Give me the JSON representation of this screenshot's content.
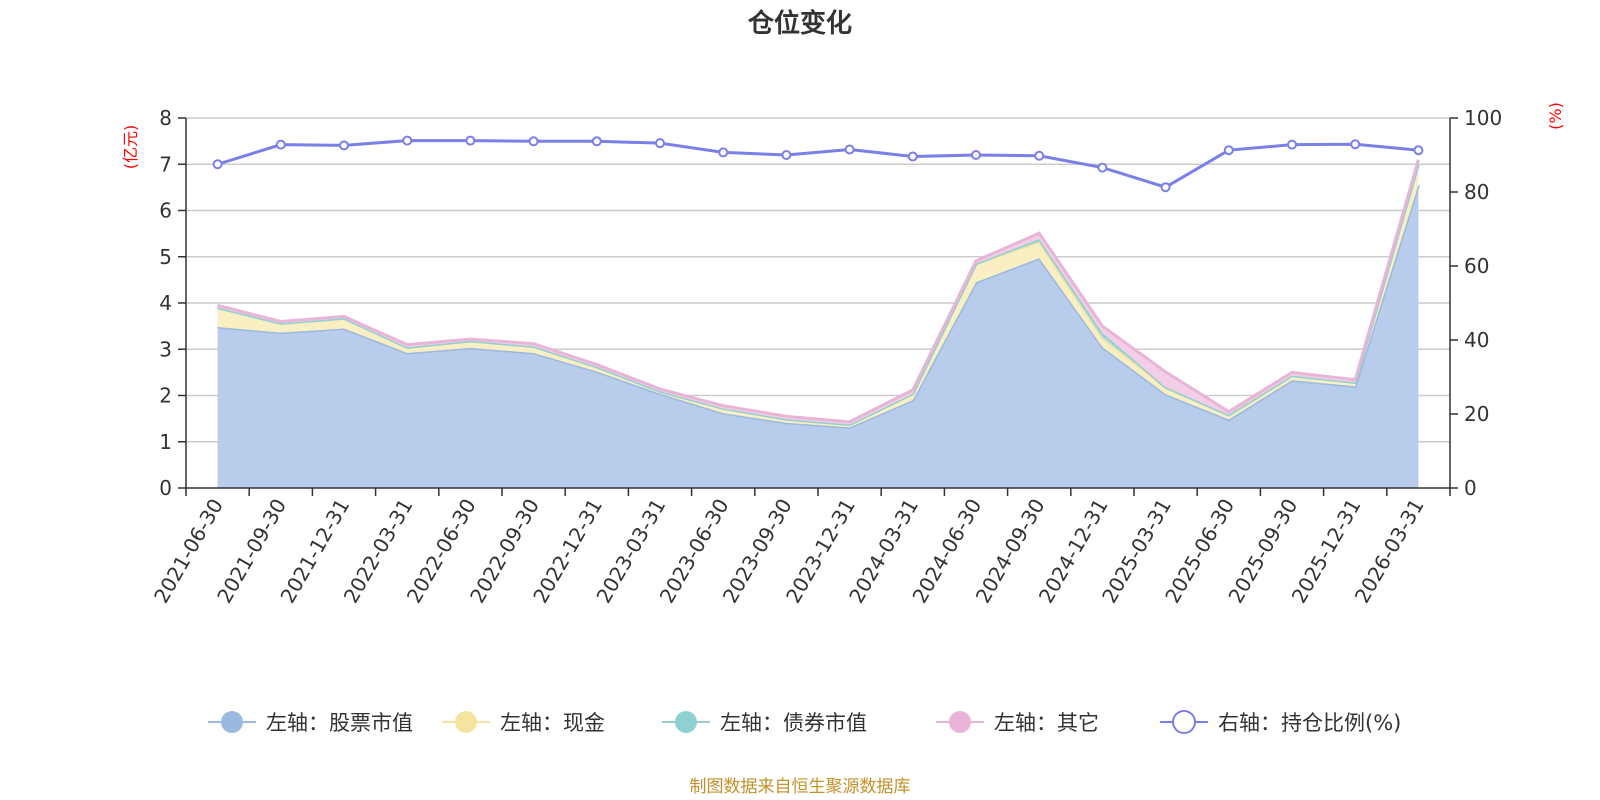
{
  "chart_data": {
    "type": "area",
    "title": "仓位变化",
    "source": "制图数据来自恒生聚源数据库",
    "left_axis": {
      "unit": "(亿元)",
      "min": 0,
      "max": 8,
      "ticks": [
        0,
        1,
        2,
        3,
        4,
        5,
        6,
        7,
        8
      ]
    },
    "right_axis": {
      "unit": "(%)",
      "min": 0,
      "max": 100,
      "ticks": [
        0,
        20,
        40,
        60,
        80,
        100
      ]
    },
    "grid": true,
    "legend_position": "bottom",
    "categories": [
      "2021-06-30",
      "2021-09-30",
      "2021-12-31",
      "2022-03-31",
      "2022-06-30",
      "2022-09-30",
      "2022-12-31",
      "2023-03-31",
      "2023-06-30",
      "2023-09-30",
      "2023-12-31",
      "2024-03-31",
      "2024-06-30",
      "2024-09-30",
      "2024-12-31",
      "2025-03-31",
      "2025-06-30",
      "2025-09-30",
      "2025-12-31",
      "2026-03-31"
    ],
    "series": [
      {
        "name": "左轴：股票市值",
        "axis": "left",
        "color": "#9bb8e0",
        "fill": "#b8cceb",
        "values": [
          3.48,
          3.36,
          3.45,
          2.92,
          3.03,
          2.92,
          2.52,
          2.04,
          1.62,
          1.41,
          1.31,
          1.9,
          4.45,
          4.97,
          3.05,
          2.03,
          1.48,
          2.33,
          2.2,
          6.55
        ]
      },
      {
        "name": "左轴：现金",
        "axis": "left",
        "color": "#f5e3a0",
        "fill": "#faefc3",
        "values": [
          0.42,
          0.2,
          0.22,
          0.12,
          0.15,
          0.14,
          0.1,
          0.05,
          0.1,
          0.08,
          0.06,
          0.14,
          0.4,
          0.35,
          0.2,
          0.15,
          0.1,
          0.1,
          0.08,
          0.45
        ]
      },
      {
        "name": "左轴：债券市值",
        "axis": "left",
        "color": "#8fd0d0",
        "fill": "#a8dcd9",
        "values": [
          0,
          0,
          0,
          0,
          0,
          0,
          0,
          0,
          0,
          0,
          0,
          0,
          0,
          0.06,
          0.1,
          0,
          0,
          0,
          0,
          0
        ]
      },
      {
        "name": "左轴：其它",
        "axis": "left",
        "color": "#e8b4d8",
        "fill": "#f2cfe6",
        "values": [
          0.05,
          0.04,
          0.04,
          0.06,
          0.04,
          0.06,
          0.05,
          0.05,
          0.06,
          0.06,
          0.06,
          0.08,
          0.06,
          0.13,
          0.15,
          0.33,
          0.07,
          0.07,
          0.06,
          0.1
        ]
      },
      {
        "name": "右轴：持仓比例(%)",
        "axis": "right",
        "color": "#7b7fe8",
        "values": [
          87.5,
          92.8,
          92.6,
          93.9,
          93.9,
          93.7,
          93.7,
          93.2,
          90.7,
          90.0,
          91.5,
          89.6,
          90.0,
          89.8,
          86.6,
          81.3,
          91.3,
          92.8,
          92.9,
          91.3
        ]
      }
    ]
  }
}
